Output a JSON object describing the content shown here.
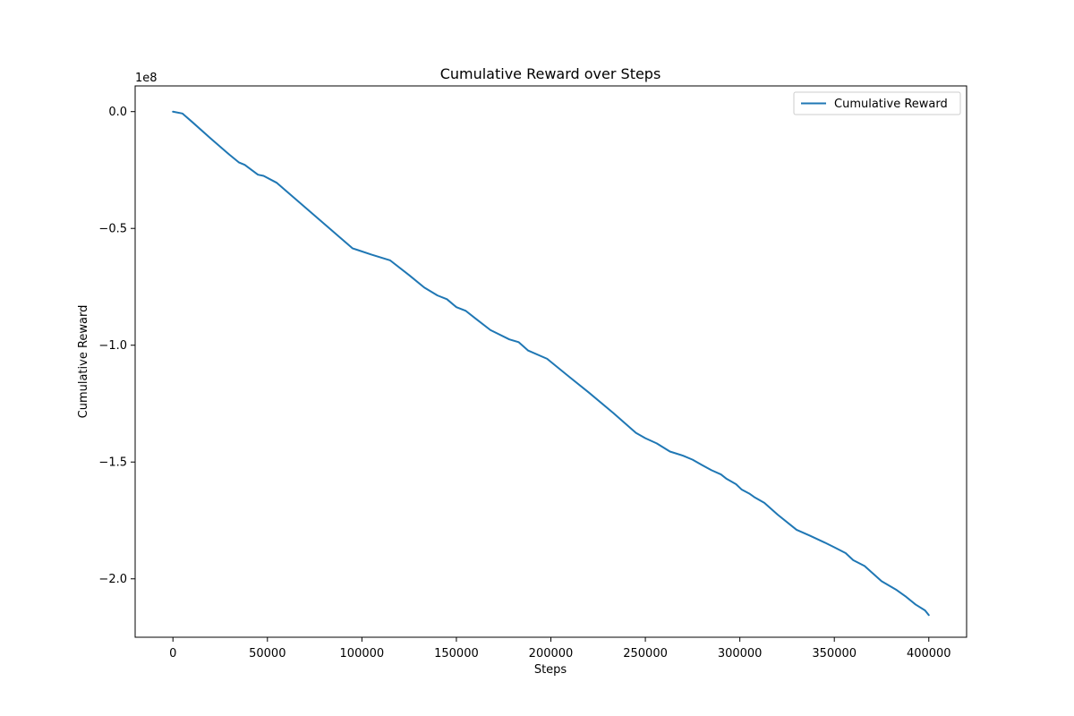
{
  "chart_data": {
    "type": "line",
    "title": "Cumulative Reward over Steps",
    "xlabel": "Steps",
    "ylabel": "Cumulative Reward",
    "y_scale_factor_label": "1e8",
    "y_scale_factor": 100000000,
    "xlim": [
      -20000,
      420000
    ],
    "ylim": [
      -225000000.0,
      11000000.0
    ],
    "x_ticks": [
      0,
      50000,
      100000,
      150000,
      200000,
      250000,
      300000,
      350000,
      400000
    ],
    "x_tick_labels": [
      "0",
      "50000",
      "100000",
      "150000",
      "200000",
      "250000",
      "300000",
      "350000",
      "400000"
    ],
    "y_ticks": [
      0,
      -50000000.0,
      -100000000.0,
      -150000000.0,
      -200000000.0
    ],
    "y_tick_labels": [
      "0.0",
      "−0.5",
      "−1.0",
      "−1.5",
      "−2.0"
    ],
    "grid": false,
    "legend_position": "upper right",
    "series": [
      {
        "name": "Cumulative Reward",
        "color": "#1f77b4",
        "x": [
          0,
          5000,
          10000,
          20000,
          30000,
          35000,
          38000,
          45000,
          48000,
          55000,
          65000,
          80000,
          95000,
          98000,
          105000,
          115000,
          125000,
          133000,
          140000,
          145000,
          150000,
          155000,
          160000,
          168000,
          178000,
          183000,
          188000,
          198000,
          210000,
          220000,
          233000,
          245000,
          250000,
          256000,
          263000,
          270000,
          275000,
          280000,
          285000,
          290000,
          293000,
          298000,
          301000,
          305000,
          308000,
          313000,
          320000,
          330000,
          337000,
          345000,
          350000,
          356000,
          360000,
          366000,
          375000,
          383000,
          388000,
          393000,
          398000,
          400000
        ],
        "y": [
          0,
          -800000.0,
          -4300000.0,
          -11500000.0,
          -18500000.0,
          -21800000.0,
          -22800000.0,
          -27000000.0,
          -27500000.0,
          -30500000.0,
          -37500000.0,
          -48000000.0,
          -58500000.0,
          -59300000.0,
          -61200000.0,
          -63700000.0,
          -70000000.0,
          -75300000.0,
          -78700000.0,
          -80300000.0,
          -83700000.0,
          -85300000.0,
          -88500000.0,
          -93500000.0,
          -97500000.0,
          -98700000.0,
          -102300000.0,
          -105800000.0,
          -113700000.0,
          -120200000.0,
          -129000000.0,
          -137500000.0,
          -139800000.0,
          -142000000.0,
          -145500000.0,
          -147300000.0,
          -149000000.0,
          -151300000.0,
          -153500000.0,
          -155300000.0,
          -157200000.0,
          -159500000.0,
          -161800000.0,
          -163500000.0,
          -165200000.0,
          -167500000.0,
          -172500000.0,
          -179000000.0,
          -181500000.0,
          -184500000.0,
          -186500000.0,
          -189000000.0,
          -192000000.0,
          -194500000.0,
          -201000000.0,
          -204800000.0,
          -207700000.0,
          -211000000.0,
          -213500000.0,
          -215500000.0
        ]
      }
    ]
  }
}
